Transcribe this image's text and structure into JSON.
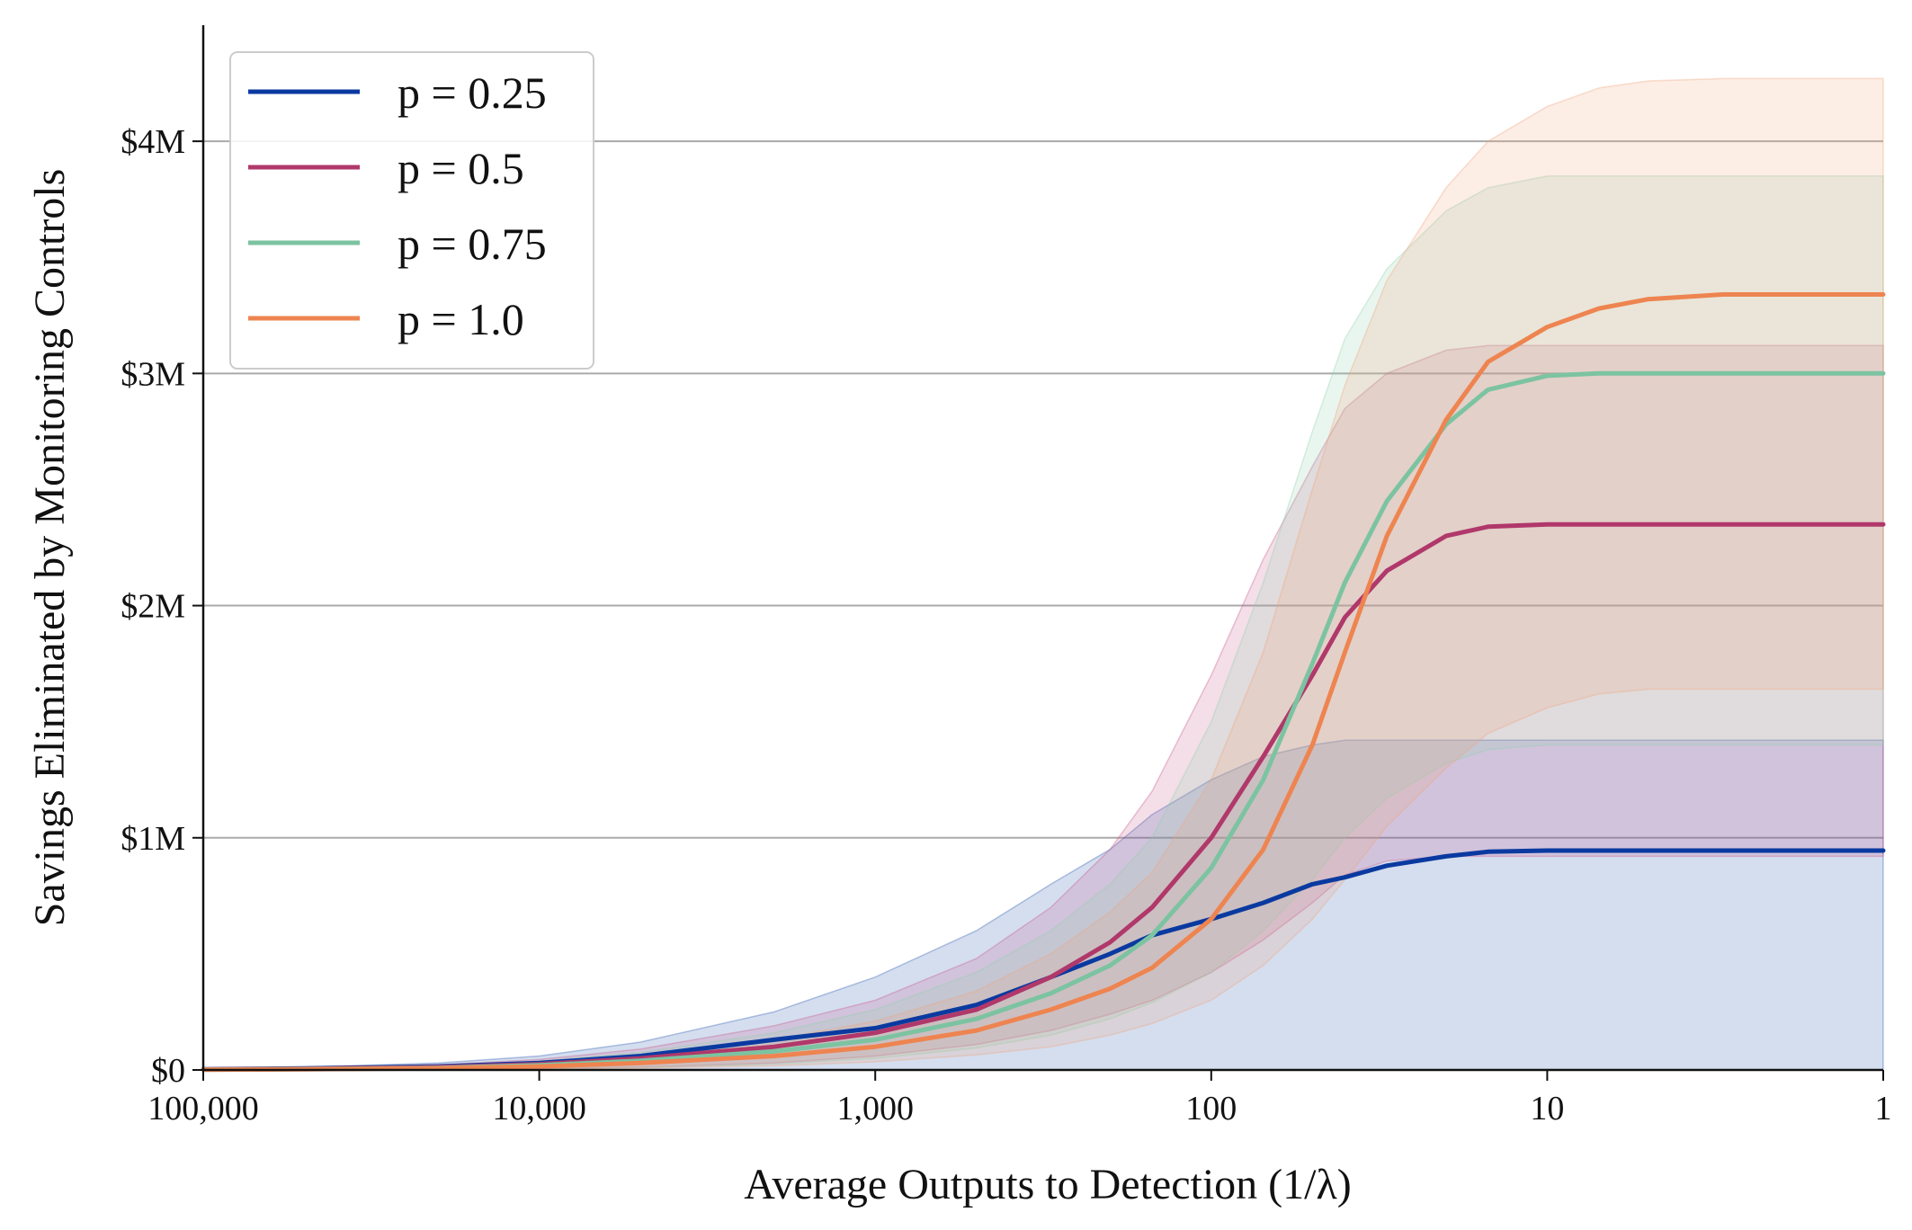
{
  "chart_data": {
    "type": "line",
    "xlabel": "Average Outputs to Detection (1/λ)",
    "ylabel": "Savings Eliminated by Monitoring Controls",
    "x_scale": "log",
    "x_reversed": true,
    "xlim": [
      100000,
      1
    ],
    "ylim": [
      0,
      4500000
    ],
    "x_ticks": [
      100000,
      10000,
      1000,
      100,
      10,
      1
    ],
    "x_tick_labels": [
      "100,000",
      "10,000",
      "1,000",
      "100",
      "10",
      "1"
    ],
    "y_ticks": [
      0,
      1000000,
      2000000,
      3000000,
      4000000
    ],
    "y_tick_labels": [
      "$0",
      "$1M",
      "$2M",
      "$3M",
      "$4M"
    ],
    "grid": "horizontal",
    "legend_position": "top-left",
    "x": [
      100000,
      50000,
      20000,
      10000,
      5000,
      2000,
      1000,
      500,
      300,
      200,
      150,
      100,
      70,
      50,
      40,
      30,
      20,
      15,
      10,
      7,
      5,
      3,
      2,
      1
    ],
    "series": [
      {
        "name": "p = 0.25",
        "color": "#0a3aa0",
        "band_color": "#2a5aaf",
        "values": [
          3000,
          7000,
          15000,
          30000,
          60000,
          130000,
          180000,
          280000,
          400000,
          500000,
          580000,
          650000,
          720000,
          800000,
          830000,
          880000,
          920000,
          940000,
          945000,
          945000,
          945000,
          945000,
          945000,
          945000
        ],
        "lower": [
          0,
          0,
          0,
          0,
          0,
          0,
          0,
          0,
          0,
          0,
          0,
          0,
          0,
          0,
          0,
          0,
          0,
          0,
          0,
          0,
          0,
          0,
          0,
          0
        ],
        "upper": [
          5000,
          12000,
          30000,
          60000,
          120000,
          250000,
          400000,
          600000,
          800000,
          950000,
          1100000,
          1250000,
          1350000,
          1400000,
          1420000,
          1420000,
          1420000,
          1420000,
          1420000,
          1420000,
          1420000,
          1420000,
          1420000,
          1420000
        ]
      },
      {
        "name": "p = 0.5",
        "color": "#b0386a",
        "band_color": "#c85a8a",
        "values": [
          2000,
          5000,
          12000,
          25000,
          50000,
          100000,
          160000,
          260000,
          400000,
          550000,
          700000,
          1000000,
          1350000,
          1700000,
          1950000,
          2150000,
          2300000,
          2340000,
          2350000,
          2350000,
          2350000,
          2350000,
          2350000,
          2350000
        ],
        "lower": [
          0,
          1000,
          3000,
          6000,
          12000,
          30000,
          60000,
          110000,
          170000,
          240000,
          300000,
          420000,
          560000,
          720000,
          840000,
          900000,
          920000,
          920000,
          920000,
          920000,
          920000,
          920000,
          920000,
          920000
        ],
        "upper": [
          4000,
          10000,
          22000,
          45000,
          90000,
          190000,
          300000,
          480000,
          700000,
          950000,
          1200000,
          1700000,
          2200000,
          2600000,
          2850000,
          3000000,
          3100000,
          3120000,
          3120000,
          3120000,
          3120000,
          3120000,
          3120000,
          3120000
        ]
      },
      {
        "name": "p = 0.75",
        "color": "#7cc3a1",
        "band_color": "#8fd0ae",
        "values": [
          1500,
          4000,
          9000,
          20000,
          40000,
          80000,
          130000,
          220000,
          330000,
          450000,
          580000,
          870000,
          1250000,
          1750000,
          2100000,
          2450000,
          2780000,
          2930000,
          2990000,
          3000000,
          3000000,
          3000000,
          3000000,
          3000000
        ],
        "lower": [
          0,
          1000,
          2500,
          5000,
          10000,
          25000,
          50000,
          95000,
          150000,
          220000,
          290000,
          420000,
          600000,
          820000,
          1000000,
          1170000,
          1320000,
          1380000,
          1400000,
          1400000,
          1400000,
          1400000,
          1400000,
          1400000
        ],
        "upper": [
          3000,
          8000,
          18000,
          38000,
          75000,
          160000,
          260000,
          420000,
          600000,
          800000,
          1000000,
          1500000,
          2100000,
          2750000,
          3150000,
          3450000,
          3700000,
          3800000,
          3850000,
          3850000,
          3850000,
          3850000,
          3850000,
          3850000
        ]
      },
      {
        "name": "p = 1.0",
        "color": "#ee8450",
        "band_color": "#f2a47c",
        "values": [
          1000,
          3000,
          7000,
          15000,
          30000,
          60000,
          100000,
          170000,
          260000,
          350000,
          440000,
          650000,
          950000,
          1400000,
          1800000,
          2300000,
          2800000,
          3050000,
          3200000,
          3280000,
          3320000,
          3340000,
          3340000,
          3340000
        ],
        "lower": [
          0,
          1000,
          2000,
          4000,
          8000,
          18000,
          35000,
          65000,
          100000,
          150000,
          200000,
          300000,
          450000,
          650000,
          820000,
          1050000,
          1300000,
          1450000,
          1560000,
          1620000,
          1640000,
          1640000,
          1640000,
          1640000
        ],
        "upper": [
          2000,
          6000,
          14000,
          30000,
          60000,
          130000,
          210000,
          340000,
          500000,
          680000,
          850000,
          1250000,
          1800000,
          2500000,
          2950000,
          3400000,
          3800000,
          4000000,
          4150000,
          4230000,
          4260000,
          4270000,
          4270000,
          4270000
        ]
      }
    ]
  }
}
